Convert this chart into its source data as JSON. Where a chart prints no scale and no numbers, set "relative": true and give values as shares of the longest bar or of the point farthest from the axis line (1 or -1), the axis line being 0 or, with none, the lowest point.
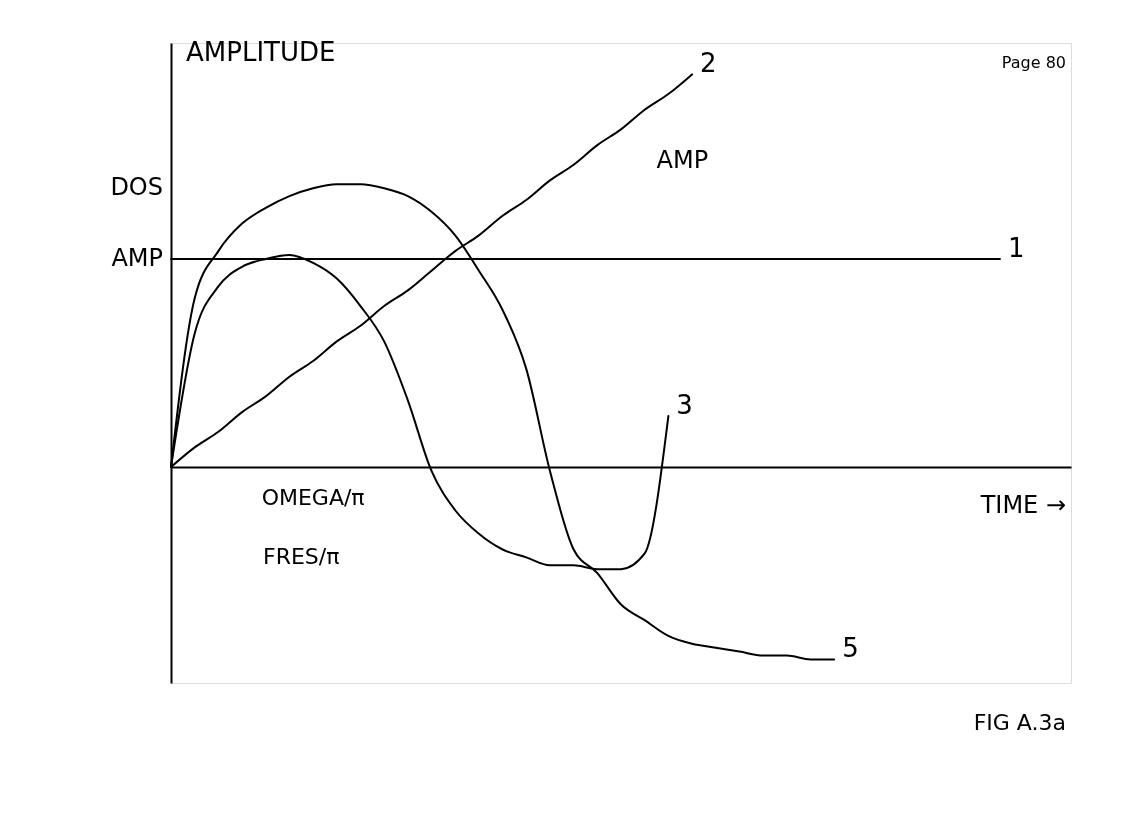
{
  "chart_data": {
    "type": "line",
    "relative": true,
    "ylabel": "AMPLITUDE",
    "xlabel": "TIME →",
    "legend": false,
    "marker": "none",
    "line_style": "solid",
    "categories": [
      null,
      null,
      null,
      null,
      null,
      null,
      null,
      null,
      null,
      null,
      null,
      null,
      null,
      null,
      null,
      null,
      null,
      null,
      null,
      null,
      null,
      null,
      null,
      null,
      null,
      null,
      null,
      null,
      null,
      null,
      null,
      null,
      null,
      null,
      null,
      null
    ],
    "series": [
      {
        "name": "1",
        "color": "#000000",
        "values": [
          0.53,
          0.53,
          0.53,
          0.53,
          0.53,
          0.53,
          0.53,
          0.53,
          0.53,
          0.53,
          0.53,
          0.53,
          0.53,
          0.53,
          0.53,
          0.53,
          0.53,
          0.53,
          0.53,
          0.53,
          0.53,
          0.53,
          0.53,
          0.53,
          0.53,
          0.53,
          0.53,
          0.53,
          0.53,
          0.53,
          0.53,
          0.53,
          0.53,
          0.53,
          0.53,
          0.53
        ]
      },
      {
        "name": "2",
        "color": "#000000",
        "values": [
          0,
          0.05,
          0.09,
          0.14,
          0.18,
          0.23,
          0.27,
          0.32,
          0.36,
          0.41,
          0.45,
          0.5,
          0.55,
          0.59,
          0.64,
          0.68,
          0.73,
          0.77,
          0.82,
          0.86,
          0.91,
          0.95,
          1,
          null,
          null,
          null,
          null,
          null,
          null,
          null,
          null,
          null,
          null,
          null,
          null,
          null
        ]
      },
      {
        "name": "3",
        "color": "#000000",
        "values": [
          0,
          0.34,
          0.46,
          0.51,
          0.53,
          0.54,
          0.52,
          0.48,
          0.41,
          0.32,
          0.17,
          -0.01,
          -0.11,
          -0.17,
          -0.21,
          -0.23,
          -0.25,
          -0.25,
          -0.26,
          -0.26,
          -0.22,
          0.13,
          null,
          null,
          null,
          null,
          null,
          null,
          null,
          null,
          null,
          null,
          null,
          null,
          null,
          null
        ]
      },
      {
        "name": "5",
        "color": "#000000",
        "values": [
          0,
          0.43,
          0.55,
          0.62,
          0.66,
          0.69,
          0.71,
          0.72,
          0.72,
          0.71,
          0.69,
          0.65,
          0.59,
          0.5,
          0.4,
          0.25,
          -0.01,
          -0.21,
          -0.27,
          -0.35,
          -0.39,
          -0.43,
          -0.45,
          -0.46,
          -0.47,
          -0.48,
          -0.48,
          -0.49,
          -0.49,
          null,
          null,
          null,
          null,
          null,
          null,
          null
        ]
      }
    ],
    "annotations": [
      "DOS",
      "AMP",
      "AMP",
      "OMEGA/π",
      "FRES/π",
      "Page 80",
      "FIG A.3a"
    ]
  }
}
